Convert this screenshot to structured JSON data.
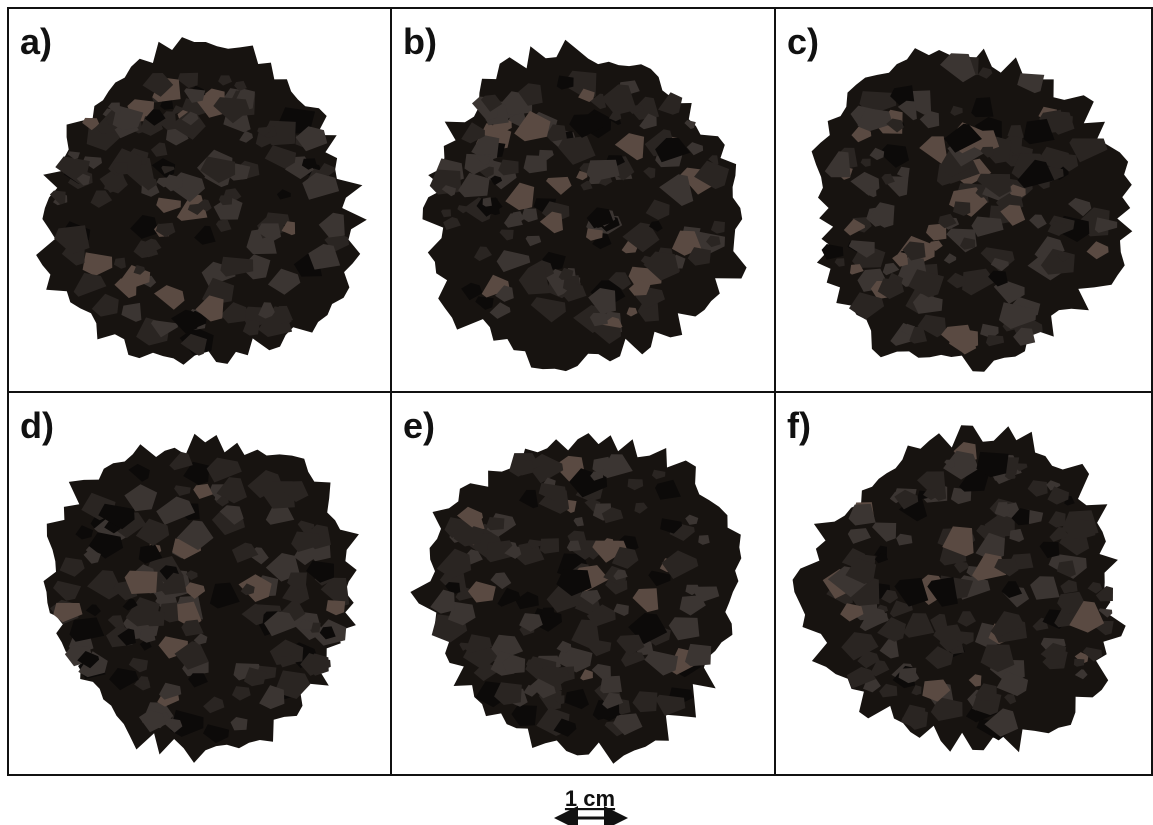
{
  "panels": [
    {
      "label": "a)"
    },
    {
      "label": "b)"
    },
    {
      "label": "c)"
    },
    {
      "label": "d)"
    },
    {
      "label": "e)"
    },
    {
      "label": "f)"
    }
  ],
  "scale_bar": {
    "label": "1 cm"
  }
}
